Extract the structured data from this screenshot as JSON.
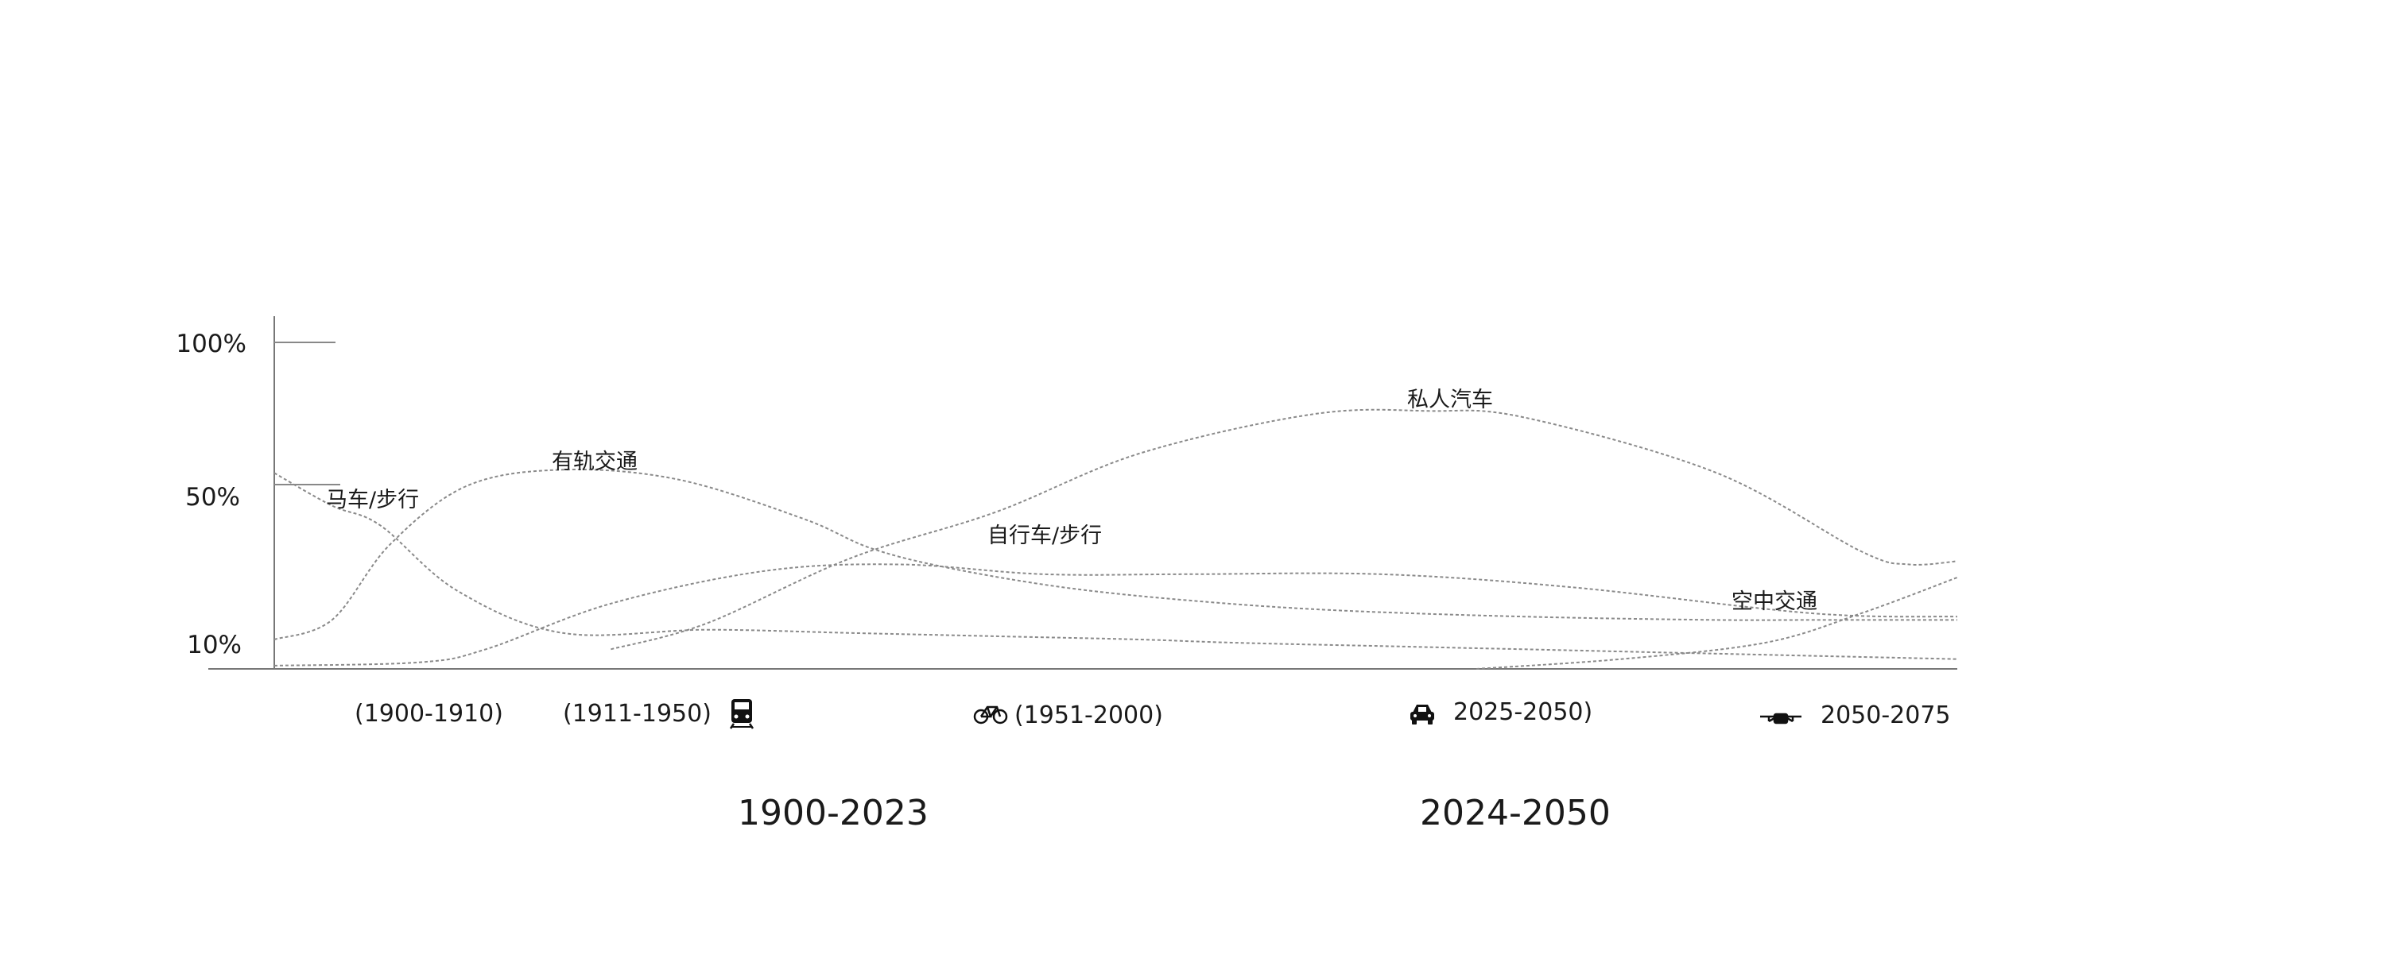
{
  "chart_data": {
    "type": "line",
    "y_ticks": [
      "100%",
      "50%",
      "10%"
    ],
    "x_range": [
      1900,
      2075
    ],
    "series": [
      {
        "name": "马车/步行",
        "x": [
          1900,
          1906,
          1911,
          1919,
          1930,
          1945,
          1960,
          1975,
          1990,
          2000,
          2015,
          2030,
          2045,
          2060,
          2075
        ],
        "y": [
          60,
          50,
          44,
          24,
          11,
          12,
          11,
          10,
          9,
          8,
          7,
          6,
          5,
          4,
          3
        ]
      },
      {
        "name": "有轨交通",
        "x": [
          1900,
          1906,
          1912,
          1920,
          1930,
          1942,
          1955,
          1962,
          1970,
          1982,
          1995,
          2010,
          2030,
          2050,
          2060,
          2075
        ],
        "y": [
          9,
          15,
          38,
          56,
          61,
          58,
          46,
          37,
          31,
          25,
          21,
          18,
          16,
          15,
          15,
          15
        ]
      },
      {
        "name": "自行车/步行",
        "x": [
          1900,
          1915,
          1922,
          1935,
          1951,
          1965,
          1980,
          1995,
          2015,
          2035,
          2060,
          2075
        ],
        "y": [
          1,
          2,
          6,
          20,
          30,
          32,
          29,
          29,
          29,
          25,
          17,
          16
        ]
      },
      {
        "name": "私人汽车",
        "x": [
          1935,
          1945,
          1960,
          1975,
          1990,
          2008,
          2020,
          2030,
          2050,
          2065,
          2070,
          2075
        ],
        "y": [
          6,
          14,
          34,
          48,
          66,
          78,
          79,
          77,
          60,
          36,
          32,
          33
        ]
      },
      {
        "name": "空中交通",
        "x": [
          2025,
          2040,
          2055,
          2065,
          2075
        ],
        "y": [
          0,
          3,
          8,
          17,
          28
        ]
      }
    ]
  },
  "period_labels": [
    "(1900-1910)",
    "(1911-1950)",
    "(1951-2000)",
    "2025-2050)",
    "2050-2075"
  ],
  "era_labels": [
    "1900-2023",
    "2024-2050"
  ],
  "icons": [
    "train-icon",
    "bicycle-icon",
    "car-icon",
    "drone-icon"
  ]
}
